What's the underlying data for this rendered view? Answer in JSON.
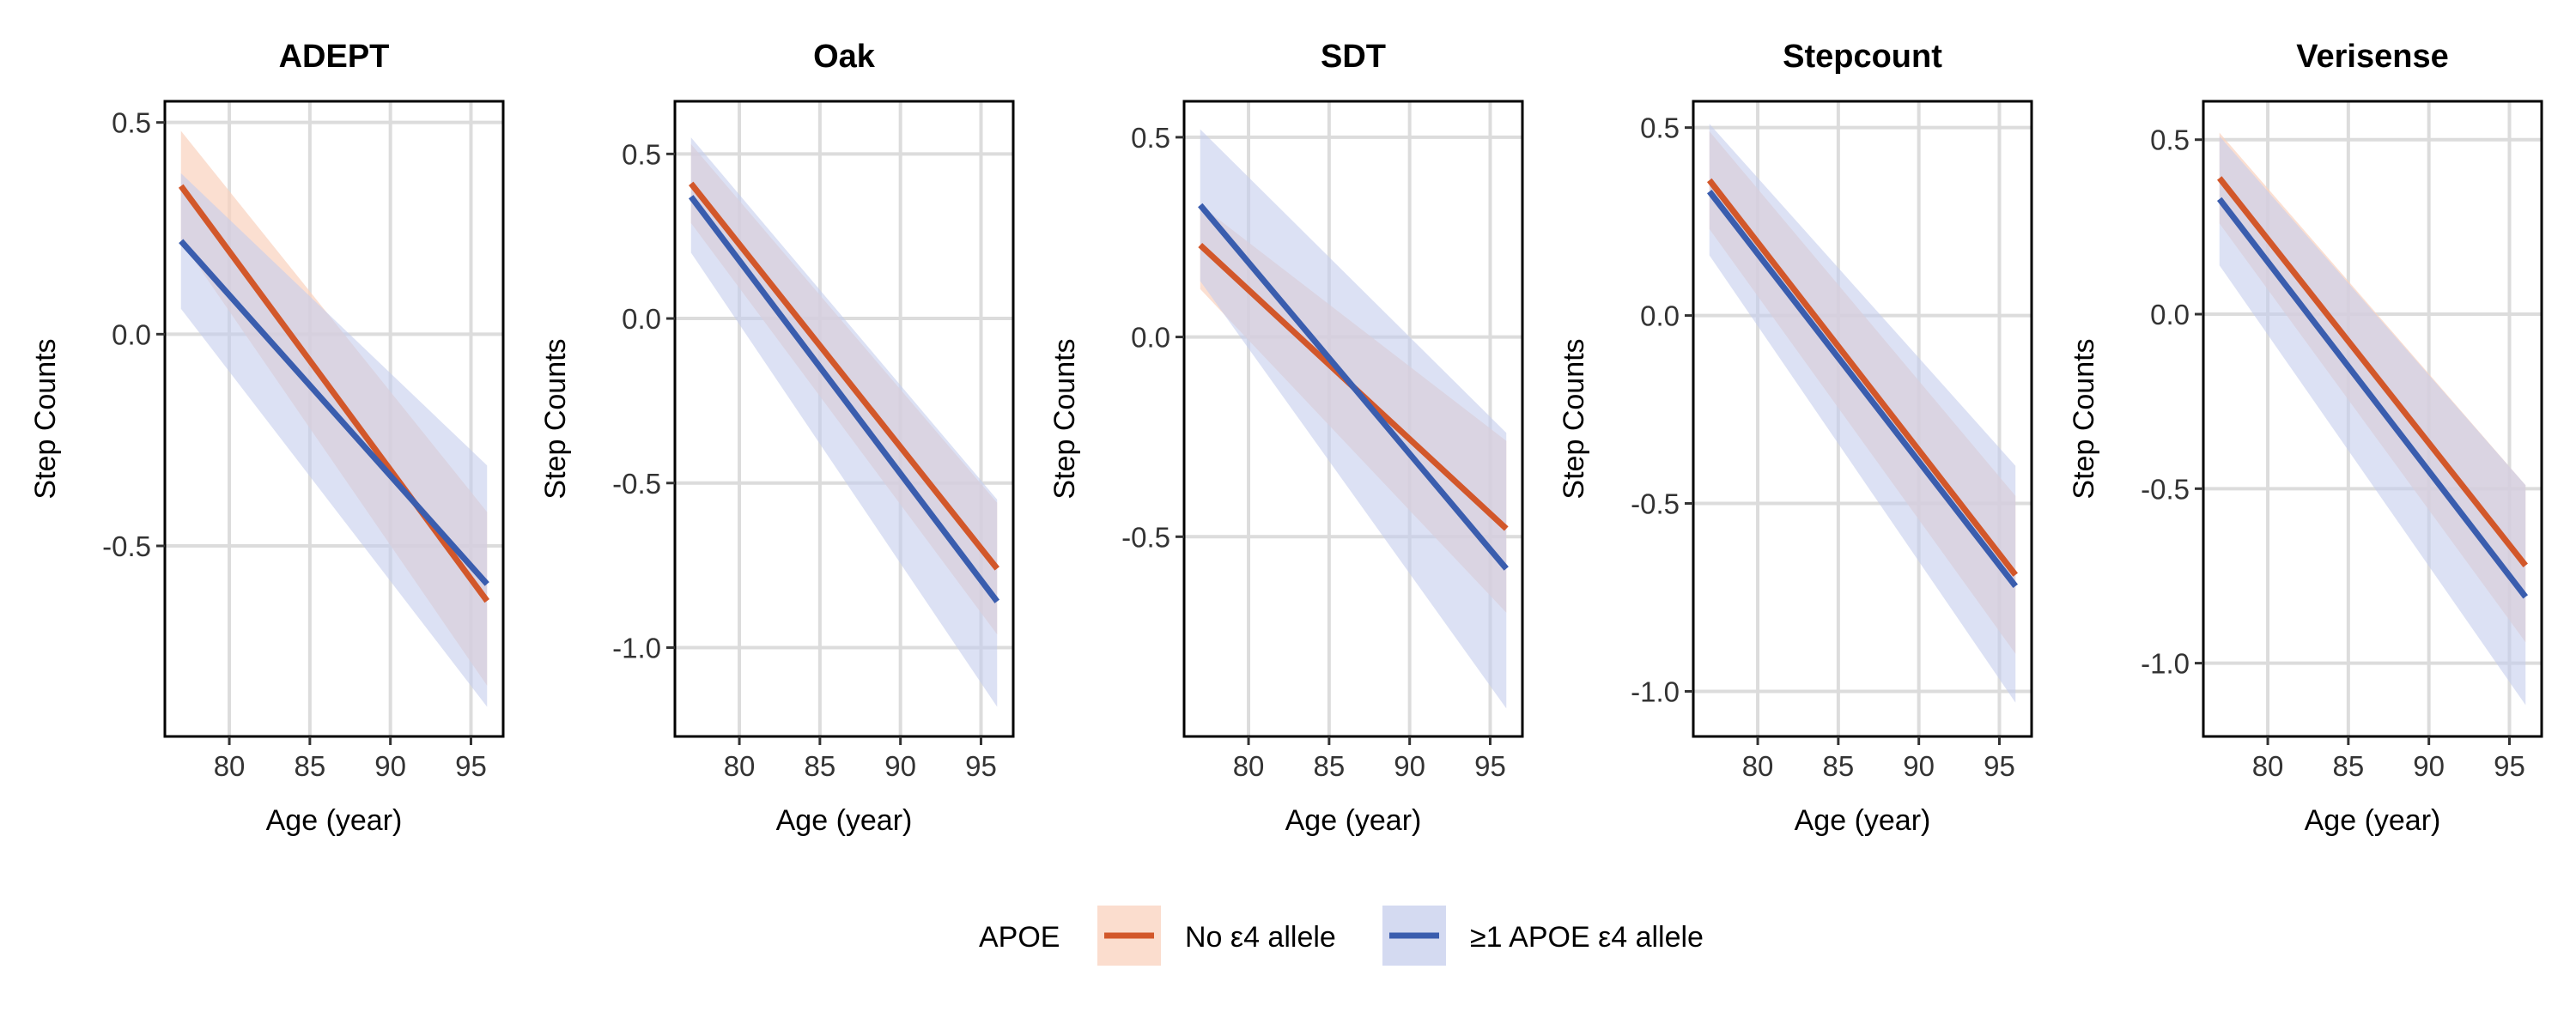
{
  "chart_data": {
    "type": "line",
    "legend": {
      "title": "APOE",
      "position": "bottom",
      "entries": [
        {
          "label": "No ε4 allele",
          "line_color": "#D2572A",
          "band_color": "#F9D2BE"
        },
        {
          "label": "≥1 APOE ε4 allele",
          "line_color": "#3A5DAE",
          "band_color": "#C5CDEC"
        }
      ]
    },
    "grid": true,
    "panels": [
      {
        "title": "ADEPT",
        "xlabel": "Age (year)",
        "ylabel": "Step Counts",
        "xlim": [
          76,
          97
        ],
        "ylim": [
          -0.95,
          0.55
        ],
        "xticks": [
          80,
          85,
          90,
          95
        ],
        "yticks": [
          -0.5,
          0.0,
          0.5
        ],
        "ytick_labels": [
          "-0.5",
          "0.0",
          "0.5"
        ],
        "series": [
          {
            "name": "No ε4 allele",
            "x": [
              77,
              96
            ],
            "y": [
              0.35,
              -0.63
            ],
            "ci_lower": [
              0.22,
              -0.83
            ],
            "ci_upper": [
              0.48,
              -0.42
            ]
          },
          {
            "name": "≥1 APOE ε4 allele",
            "x": [
              77,
              96
            ],
            "y": [
              0.22,
              -0.59
            ],
            "ci_lower": [
              0.06,
              -0.88
            ],
            "ci_upper": [
              0.38,
              -0.31
            ]
          }
        ]
      },
      {
        "title": "Oak",
        "xlabel": "Age (year)",
        "ylabel": "Step Counts",
        "xlim": [
          76,
          97
        ],
        "ylim": [
          -1.27,
          0.66
        ],
        "xticks": [
          80,
          85,
          90,
          95
        ],
        "yticks": [
          -1.0,
          -0.5,
          0.0,
          0.5
        ],
        "ytick_labels": [
          "-1.0",
          "-0.5",
          "0.0",
          "0.5"
        ],
        "series": [
          {
            "name": "No ε4 allele",
            "x": [
              77,
              96
            ],
            "y": [
              0.41,
              -0.76
            ],
            "ci_lower": [
              0.29,
              -0.96
            ],
            "ci_upper": [
              0.53,
              -0.56
            ]
          },
          {
            "name": "≥1 APOE ε4 allele",
            "x": [
              77,
              96
            ],
            "y": [
              0.37,
              -0.86
            ],
            "ci_lower": [
              0.2,
              -1.18
            ],
            "ci_upper": [
              0.55,
              -0.55
            ]
          }
        ]
      },
      {
        "title": "SDT",
        "xlabel": "Age (year)",
        "ylabel": "Step Counts",
        "xlim": [
          76,
          97
        ],
        "ylim": [
          -1.0,
          0.59
        ],
        "xticks": [
          80,
          85,
          90,
          95
        ],
        "yticks": [
          -0.5,
          0.0,
          0.5
        ],
        "ytick_labels": [
          "-0.5",
          "0.0",
          "0.5"
        ],
        "series": [
          {
            "name": "No ε4 allele",
            "x": [
              77,
              96
            ],
            "y": [
              0.23,
              -0.48
            ],
            "ci_lower": [
              0.12,
              -0.69
            ],
            "ci_upper": [
              0.33,
              -0.26
            ]
          },
          {
            "name": "≥1 APOE ε4 allele",
            "x": [
              77,
              96
            ],
            "y": [
              0.33,
              -0.58
            ],
            "ci_lower": [
              0.14,
              -0.93
            ],
            "ci_upper": [
              0.52,
              -0.24
            ]
          }
        ]
      },
      {
        "title": "Stepcount",
        "xlabel": "Age (year)",
        "ylabel": "Step Counts",
        "xlim": [
          76,
          97
        ],
        "ylim": [
          -1.12,
          0.57
        ],
        "xticks": [
          80,
          85,
          90,
          95
        ],
        "yticks": [
          -1.0,
          -0.5,
          0.0,
          0.5
        ],
        "ytick_labels": [
          "-1.0",
          "-0.5",
          "0.0",
          "0.5"
        ],
        "series": [
          {
            "name": "No ε4 allele",
            "x": [
              77,
              96
            ],
            "y": [
              0.36,
              -0.69
            ],
            "ci_lower": [
              0.23,
              -0.9
            ],
            "ci_upper": [
              0.49,
              -0.48
            ]
          },
          {
            "name": "≥1 APOE ε4 allele",
            "x": [
              77,
              96
            ],
            "y": [
              0.33,
              -0.72
            ],
            "ci_lower": [
              0.16,
              -1.03
            ],
            "ci_upper": [
              0.51,
              -0.4
            ]
          }
        ]
      },
      {
        "title": "Verisense",
        "xlabel": "Age (year)",
        "ylabel": "Step Counts",
        "xlim": [
          76,
          97
        ],
        "ylim": [
          -1.21,
          0.61
        ],
        "xticks": [
          80,
          85,
          90,
          95
        ],
        "yticks": [
          -1.0,
          -0.5,
          0.0,
          0.5
        ],
        "ytick_labels": [
          "-1.0",
          "-0.5",
          "0.0",
          "0.5"
        ],
        "series": [
          {
            "name": "No ε4 allele",
            "x": [
              77,
              96
            ],
            "y": [
              0.39,
              -0.72
            ],
            "ci_lower": [
              0.26,
              -0.94
            ],
            "ci_upper": [
              0.52,
              -0.49
            ]
          },
          {
            "name": "≥1 APOE ε4 allele",
            "x": [
              77,
              96
            ],
            "y": [
              0.33,
              -0.81
            ],
            "ci_lower": [
              0.14,
              -1.12
            ],
            "ci_upper": [
              0.51,
              -0.49
            ]
          }
        ]
      }
    ]
  }
}
